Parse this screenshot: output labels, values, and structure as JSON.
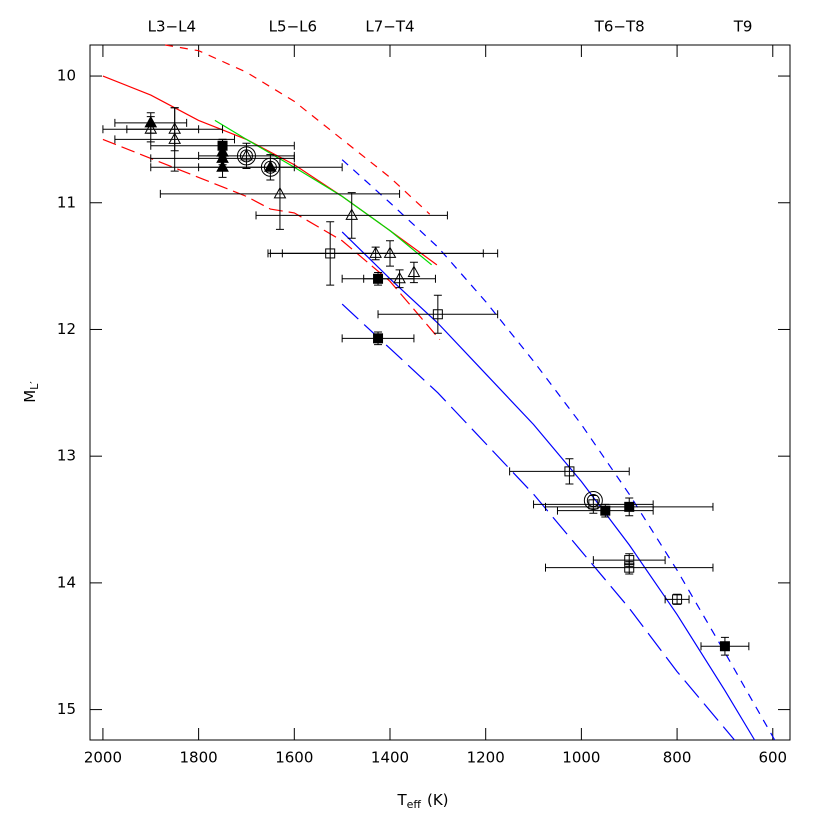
{
  "chart_data": {
    "type": "scatter",
    "xlabel": "T",
    "xlabel_sub": "eff",
    "xlabel_rest": "(K)",
    "ylabel": "M",
    "ylabel_sub": "L′",
    "xlim": [
      2027,
      564
    ],
    "ylim": [
      9.755,
      15.24
    ],
    "xticks": [
      2000,
      1800,
      1600,
      1400,
      1200,
      1000,
      800,
      600
    ],
    "yticks": [
      10,
      11,
      12,
      13,
      14,
      15
    ],
    "top_labels": [
      {
        "label": "L3−L4",
        "x": 1856
      },
      {
        "label": "L5−L6",
        "x": 1603
      },
      {
        "label": "L7−T4",
        "x": 1400
      },
      {
        "label": "T6−T8",
        "x": 920
      },
      {
        "label": "T9",
        "x": 662
      }
    ],
    "curves": [
      {
        "color": "#ff0000",
        "dash": "8 7",
        "x": [
          1870,
          1800,
          1700,
          1600,
          1500,
          1400,
          1317
        ],
        "y": [
          9.755,
          9.8,
          9.97,
          10.2,
          10.5,
          10.8,
          11.09
        ]
      },
      {
        "color": "#ff0000",
        "dash": "",
        "x": [
          2000,
          1900,
          1800,
          1700,
          1600,
          1500,
          1400,
          1302
        ],
        "y": [
          10.0,
          10.15,
          10.35,
          10.5,
          10.7,
          10.95,
          11.22,
          11.49
        ]
      },
      {
        "color": "#00dd00",
        "dash": "",
        "x": [
          1766,
          1700,
          1600,
          1500,
          1400,
          1313
        ],
        "y": [
          10.35,
          10.5,
          10.72,
          10.95,
          11.22,
          11.49
        ]
      },
      {
        "color": "#ff0000",
        "dash": "14 6",
        "x": [
          2000,
          1900,
          1800,
          1700,
          1650,
          1600,
          1500,
          1400,
          1296
        ],
        "y": [
          10.5,
          10.65,
          10.8,
          10.95,
          11.05,
          11.08,
          11.3,
          11.62,
          12.08
        ]
      },
      {
        "color": "#0000ff",
        "dash": "8 7",
        "x": [
          1500,
          1400,
          1300,
          1200,
          1100,
          1000,
          900,
          800,
          700,
          596
        ],
        "y": [
          10.66,
          11.0,
          11.35,
          11.78,
          12.25,
          12.75,
          13.3,
          13.9,
          14.55,
          15.24
        ]
      },
      {
        "color": "#0000ff",
        "dash": "",
        "x": [
          1500,
          1400,
          1300,
          1200,
          1100,
          1000,
          900,
          800,
          700,
          638
        ],
        "y": [
          11.23,
          11.6,
          11.95,
          12.35,
          12.75,
          13.2,
          13.7,
          14.25,
          14.85,
          15.24
        ]
      },
      {
        "color": "#0000ff",
        "dash": "22 8",
        "x": [
          1500,
          1400,
          1300,
          1200,
          1100,
          1000,
          900,
          800,
          680
        ],
        "y": [
          11.8,
          12.15,
          12.5,
          12.9,
          13.3,
          13.75,
          14.2,
          14.7,
          15.24
        ]
      }
    ],
    "series": [
      {
        "marker": "triangle",
        "filled": true,
        "x": [
          1900,
          1750,
          1750,
          1750,
          1650
        ],
        "y": [
          10.37,
          10.6,
          10.65,
          10.72,
          10.72
        ],
        "xerr": [
          75,
          0,
          150,
          150,
          150
        ],
        "yerr": [
          0.08,
          0.1,
          0.08,
          0.08,
          0.1
        ]
      },
      {
        "marker": "square",
        "filled": true,
        "x": [
          1750,
          1425,
          1425,
          950,
          900,
          700
        ],
        "y": [
          10.55,
          11.6,
          12.07,
          13.43,
          13.4,
          14.5
        ],
        "xerr": [
          150,
          75,
          75,
          100,
          175,
          50
        ],
        "yerr": [
          0.05,
          0.05,
          0.05,
          0.05,
          0.07,
          0.07
        ]
      },
      {
        "marker": "triangle",
        "filled": false,
        "x": [
          1900,
          1850,
          1850,
          1700,
          1630,
          1480,
          1430,
          1400,
          1380,
          1350
        ],
        "y": [
          10.42,
          10.42,
          10.5,
          10.63,
          10.93,
          11.1,
          11.4,
          11.4,
          11.6,
          11.55
        ],
        "xerr": [
          100,
          100,
          125,
          100,
          250,
          200,
          225,
          225,
          75,
          0
        ],
        "yerr": [
          0.1,
          0.17,
          0.25,
          0.1,
          0.28,
          0.18,
          0.05,
          0.1,
          0.07,
          0.08
        ]
      },
      {
        "marker": "square",
        "filled": false,
        "x": [
          1525,
          1300,
          1025,
          975,
          900,
          900,
          800
        ],
        "y": [
          11.4,
          11.88,
          13.12,
          13.38,
          13.82,
          13.88,
          14.13
        ],
        "xerr": [
          125,
          125,
          125,
          125,
          75,
          175,
          25
        ],
        "yerr": [
          0.25,
          0.15,
          0.1,
          0.07,
          0.05,
          0.05,
          0.04
        ]
      },
      {
        "marker": "circle",
        "filled": false,
        "x": [
          1700,
          1650,
          975
        ],
        "y": [
          10.63,
          10.72,
          13.35
        ]
      }
    ]
  }
}
